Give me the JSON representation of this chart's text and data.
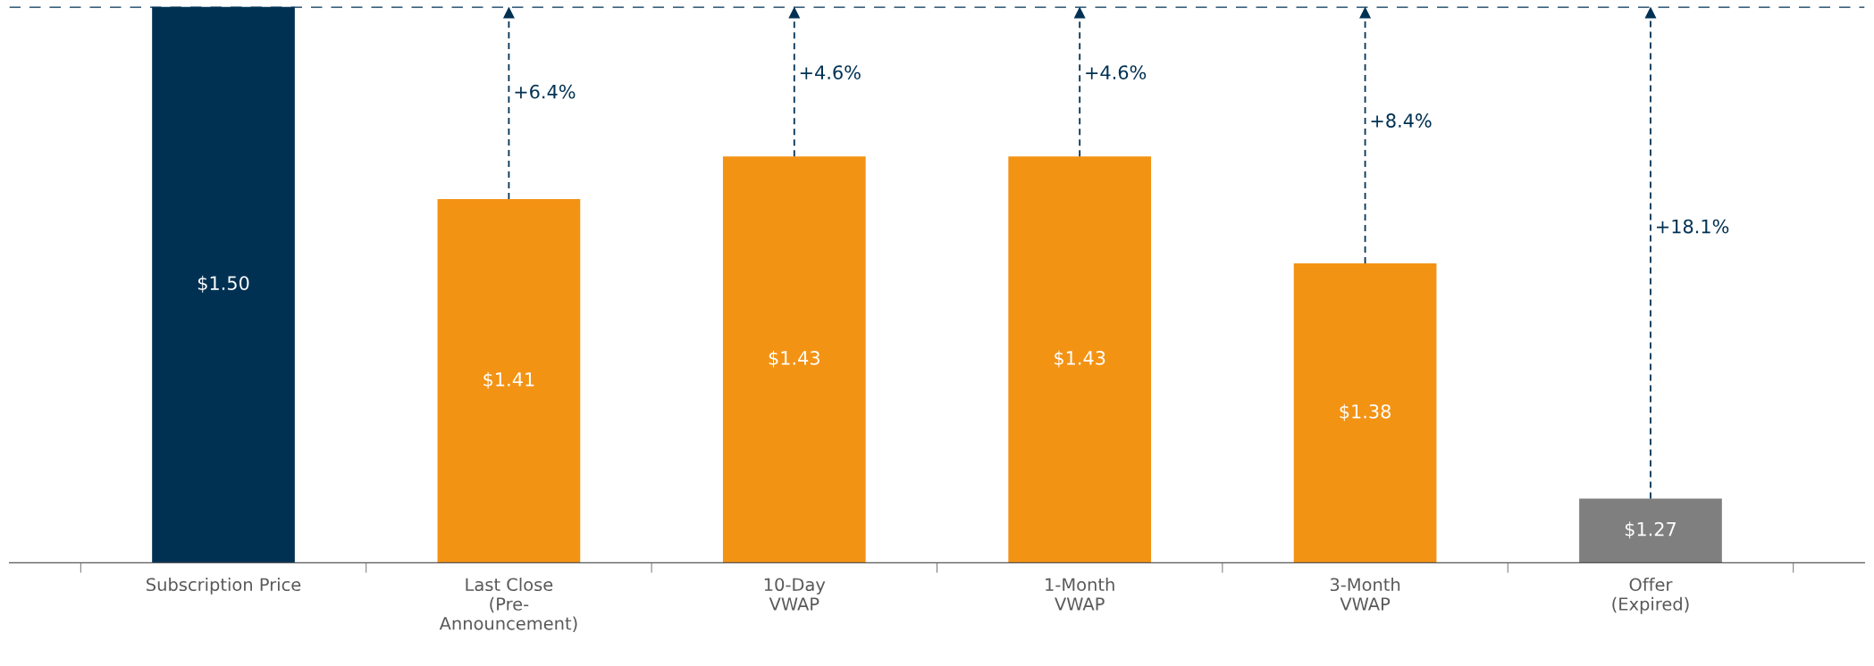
{
  "chart_data": {
    "type": "bar",
    "categories": [
      "Subscription Price",
      "Last Close\n(Pre-\nAnnouncement)",
      "10-Day\nVWAP",
      "1-Month\nVWAP",
      "3-Month\nVWAP",
      "Offer\n(Expired)"
    ],
    "values": [
      1.5,
      1.41,
      1.43,
      1.43,
      1.38,
      1.27
    ],
    "colors": [
      "#003153",
      "#f39314",
      "#f39314",
      "#f39314",
      "#f39314",
      "#7f7f7f"
    ],
    "data_labels": true,
    "value_labels": [
      "$1.50",
      "$1.41",
      "$1.43",
      "$1.43",
      "$1.38",
      "$1.27"
    ],
    "ylim": [
      1.24,
      1.5
    ],
    "tick_labels": "x",
    "grid": false,
    "ref_lines": [
      {
        "axis": "y",
        "value": 1.5,
        "color": "#003153",
        "line_style": "dashed"
      }
    ],
    "annotations": [
      "+6.4%",
      "+4.6%",
      "+4.6%",
      "+8.4%",
      "+18.1%"
    ]
  }
}
